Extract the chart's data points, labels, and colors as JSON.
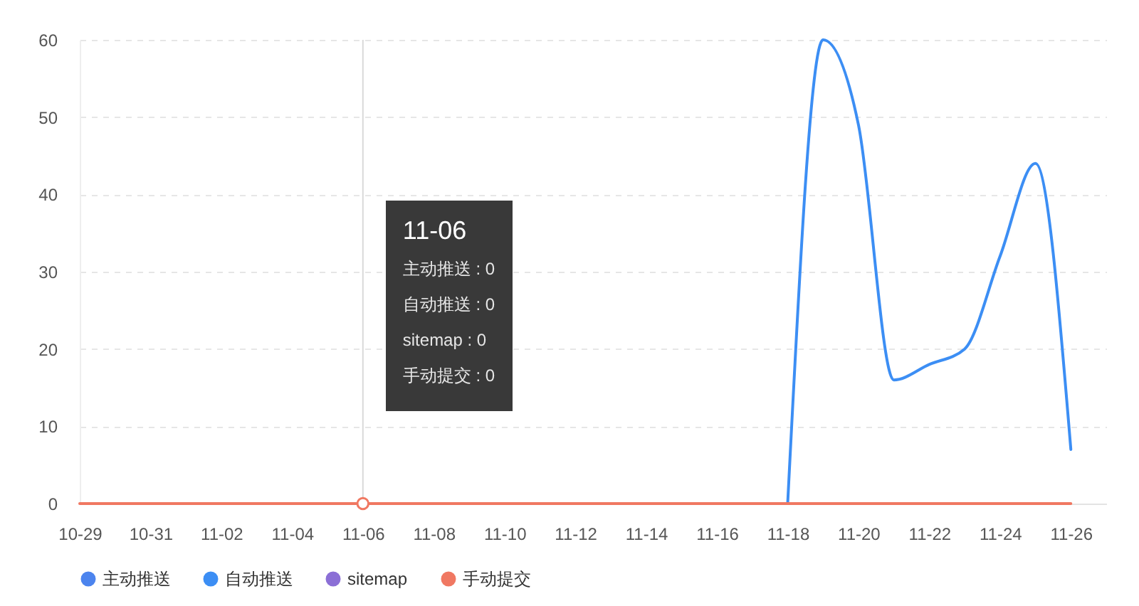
{
  "chart_data": {
    "type": "line",
    "categories": [
      "10-29",
      null,
      "10-31",
      null,
      "11-02",
      null,
      "11-04",
      null,
      "11-06",
      null,
      "11-08",
      null,
      "11-10",
      null,
      "11-12",
      null,
      "11-14",
      null,
      "11-16",
      null,
      "11-18",
      null,
      "11-20",
      null,
      "11-22",
      null,
      "11-24",
      null,
      "11-26",
      null
    ],
    "series": [
      {
        "name": "主动推送",
        "color": "#4c84ee",
        "values": [
          null,
          null,
          null,
          null,
          null,
          null,
          null,
          null,
          null,
          null,
          null,
          null,
          null,
          null,
          null,
          null,
          null,
          null,
          null,
          null,
          null,
          null,
          null,
          null,
          null,
          null,
          null,
          null,
          null,
          null
        ]
      },
      {
        "name": "自动推送",
        "color": "#3c8ef4",
        "values": [
          null,
          null,
          null,
          null,
          null,
          null,
          null,
          null,
          null,
          null,
          null,
          null,
          null,
          null,
          null,
          null,
          null,
          null,
          null,
          null,
          0,
          60,
          49,
          16,
          18,
          20,
          32,
          44,
          7,
          null
        ]
      },
      {
        "name": "sitemap",
        "color": "#8b6fd6",
        "values": [
          null,
          null,
          null,
          null,
          null,
          null,
          null,
          null,
          null,
          null,
          null,
          null,
          null,
          null,
          null,
          null,
          null,
          null,
          null,
          null,
          null,
          null,
          null,
          null,
          null,
          null,
          null,
          null,
          null,
          null
        ]
      },
      {
        "name": "手动提交",
        "color": "#f07862",
        "values": [
          0,
          0,
          0,
          0,
          0,
          0,
          0,
          0,
          0,
          0,
          0,
          0,
          0,
          0,
          0,
          0,
          0,
          0,
          0,
          0,
          0,
          0,
          0,
          0,
          0,
          0,
          0,
          0,
          0,
          null
        ]
      }
    ],
    "ylim": [
      0,
      60
    ],
    "yticks": [
      0,
      10,
      20,
      30,
      40,
      50,
      60
    ],
    "grid": "y",
    "legend": "bottom",
    "ref_lines": [
      {
        "axis": "x",
        "value": "11-06",
        "color": "#d9d9d9"
      }
    ],
    "annotations": [
      "11-06",
      "主动推送 : 0",
      "自动推送 : 0",
      "sitemap : 0",
      "手动提交 : 0"
    ]
  }
}
